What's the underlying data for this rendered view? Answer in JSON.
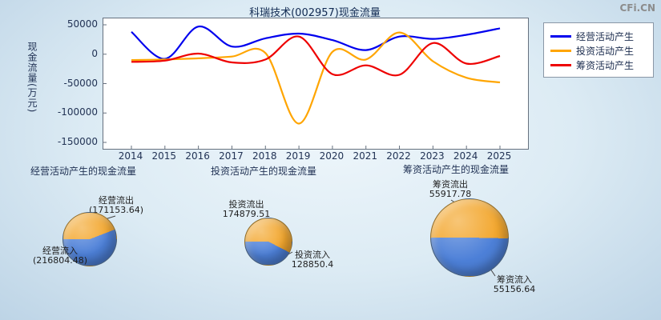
{
  "watermark": "CFi.CN",
  "chart_data": [
    {
      "type": "line",
      "title": "科瑞技术(002957)现金流量",
      "ylabel": "现金流量(万元)",
      "unit": "万元",
      "x": [
        2014,
        2015,
        2016,
        2017,
        2018,
        2019,
        2020,
        2021,
        2022,
        2023,
        2024,
        2025
      ],
      "ylim": [
        -150000,
        50000
      ],
      "yticks": [
        50000,
        0,
        -50000,
        -100000,
        -150000
      ],
      "grid": false,
      "legend_position": "right",
      "series": [
        {
          "name": "经营活动产生",
          "color": "#0000ee",
          "values": [
            38000,
            -8000,
            47000,
            13000,
            27000,
            35000,
            24000,
            7000,
            30000,
            26000,
            33000,
            44000
          ]
        },
        {
          "name": "投资活动产生",
          "color": "#ffa500",
          "values": [
            -10000,
            -9000,
            -7000,
            -4000,
            2000,
            -118000,
            4000,
            -9000,
            37000,
            -12000,
            -40000,
            -48000
          ]
        },
        {
          "name": "筹资活动产生",
          "color": "#ee0000",
          "values": [
            -13000,
            -11000,
            1000,
            -14000,
            -9000,
            30000,
            -34000,
            -19000,
            -35000,
            19000,
            -16000,
            -3000
          ]
        }
      ]
    },
    {
      "type": "pie",
      "title": "经营活动产生的现金流量",
      "slices": [
        {
          "label": "经营流出",
          "value": 171153.64,
          "display": "(171153.64)"
        },
        {
          "label": "经营流入",
          "value": 216804.48,
          "display": "(216804.48)"
        }
      ]
    },
    {
      "type": "pie",
      "title": "投资活动产生的现金流量",
      "slices": [
        {
          "label": "投资流出",
          "value": 174879.51,
          "display": "174879.51"
        },
        {
          "label": "投资流入",
          "value": 128850.4,
          "display": "128850.4"
        }
      ]
    },
    {
      "type": "pie",
      "title": "筹资活动产生的现金流量",
      "slices": [
        {
          "label": "筹资流出",
          "value": 55917.78,
          "display": "55917.78"
        },
        {
          "label": "筹资流入",
          "value": 55156.64,
          "display": "55156.64"
        }
      ]
    }
  ],
  "colors": {
    "outflow_slice": "#f3a72e",
    "inflow_slice": "#4d80d8",
    "operating_line": "#0000ee",
    "investing_line": "#ffa500",
    "financing_line": "#ee0000",
    "plot_background": "#ffffff",
    "watermark_text": "#8c8c8c"
  }
}
